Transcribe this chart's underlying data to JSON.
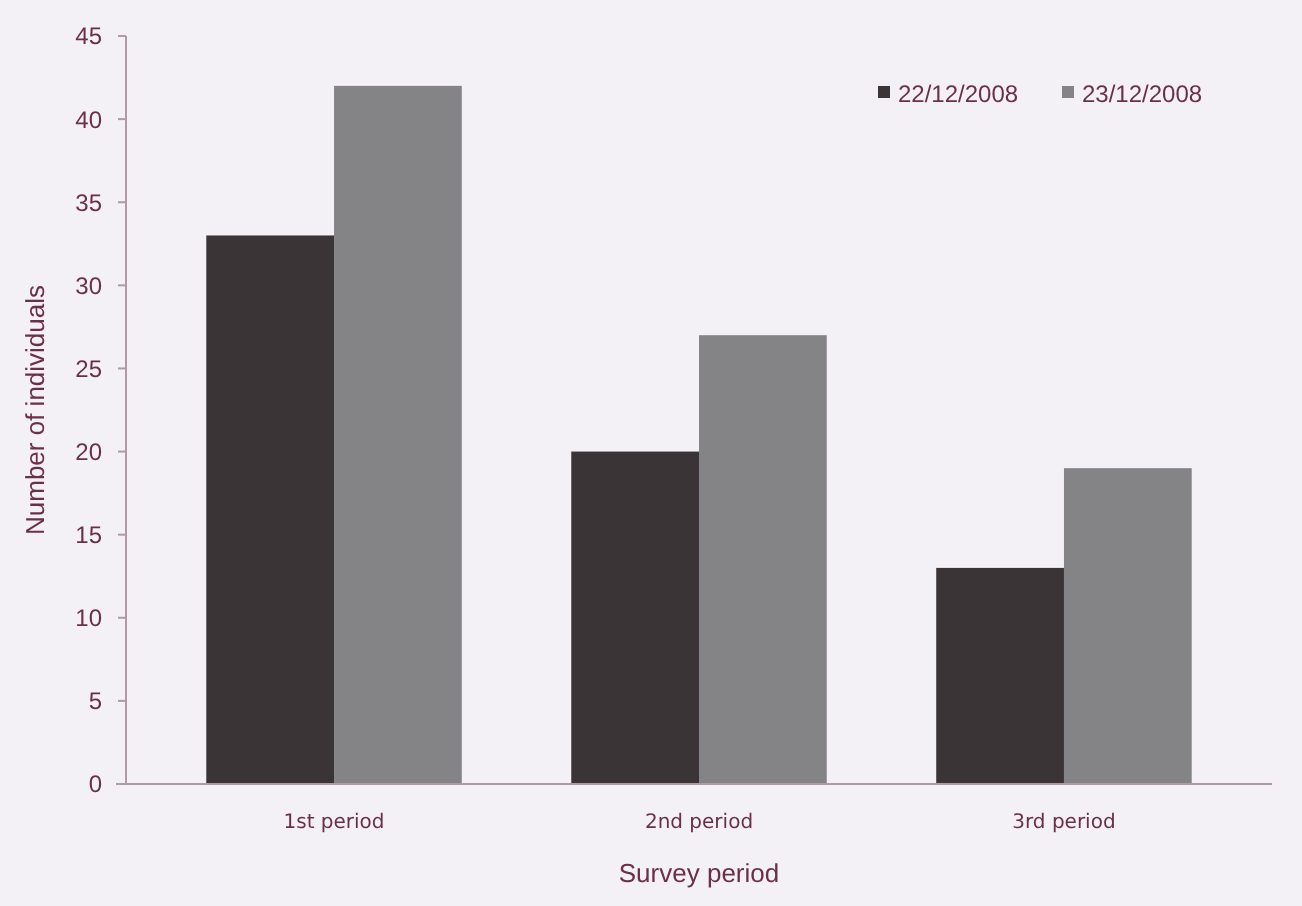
{
  "chart_data": {
    "type": "bar",
    "xlabel": "Survey period",
    "ylabel": "Number of individuals",
    "categories": [
      "1st period",
      "2nd period",
      "3rd period"
    ],
    "series": [
      {
        "name": "22/12/2008",
        "color": "#3b3437",
        "values": [
          33,
          20,
          13
        ]
      },
      {
        "name": "23/12/2008",
        "color": "#848386",
        "values": [
          42,
          27,
          19
        ]
      }
    ],
    "ylim": [
      0,
      45
    ],
    "yticks": [
      0,
      5,
      10,
      15,
      20,
      25,
      30,
      35,
      40,
      45
    ],
    "grid": false,
    "legend": "top right"
  }
}
